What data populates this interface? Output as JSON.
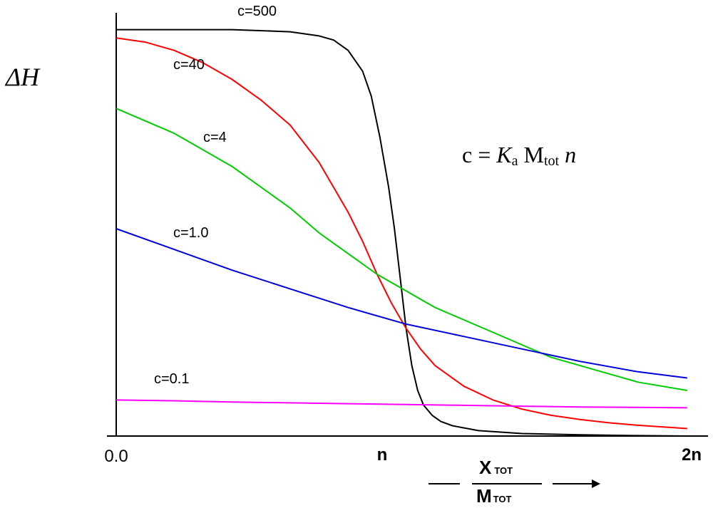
{
  "chart_data": {
    "type": "line",
    "ylabel": "ΔH",
    "xlabel": {
      "numerator_main": "X",
      "numerator_sub": "TOT",
      "denominator_main": "M",
      "denominator_sub": "TOT"
    },
    "x_tick_labels": [
      "0.0",
      "n",
      "2n"
    ],
    "xlim": [
      0,
      2
    ],
    "ylim": [
      0,
      1
    ],
    "annotation": {
      "c": "c",
      "eq": " = ",
      "K": "K",
      "K_sub": "a",
      "M": " M",
      "M_sub": "tot",
      "n": "n"
    },
    "series": [
      {
        "name": "c=500",
        "color": "#000000",
        "x": [
          0,
          0.2,
          0.4,
          0.6,
          0.7,
          0.75,
          0.8,
          0.85,
          0.88,
          0.91,
          0.94,
          0.96,
          0.98,
          1.0,
          1.02,
          1.04,
          1.06,
          1.09,
          1.12,
          1.16,
          1.25,
          1.4,
          1.6,
          1.8,
          1.97
        ],
        "y": [
          0.98,
          0.98,
          0.98,
          0.975,
          0.965,
          0.955,
          0.93,
          0.88,
          0.82,
          0.72,
          0.6,
          0.5,
          0.38,
          0.26,
          0.17,
          0.11,
          0.075,
          0.05,
          0.035,
          0.025,
          0.013,
          0.006,
          0.003,
          0.001,
          0.0
        ]
      },
      {
        "name": "c=40",
        "color": "#ff0000",
        "x": [
          0,
          0.1,
          0.2,
          0.3,
          0.4,
          0.5,
          0.6,
          0.7,
          0.8,
          0.85,
          0.9,
          0.95,
          1.0,
          1.05,
          1.1,
          1.2,
          1.3,
          1.4,
          1.5,
          1.6,
          1.7,
          1.8,
          1.97
        ],
        "y": [
          0.96,
          0.95,
          0.93,
          0.9,
          0.86,
          0.81,
          0.75,
          0.66,
          0.54,
          0.47,
          0.39,
          0.32,
          0.26,
          0.21,
          0.17,
          0.12,
          0.087,
          0.065,
          0.05,
          0.04,
          0.032,
          0.026,
          0.018
        ]
      },
      {
        "name": "c=4",
        "color": "#00cc00",
        "x": [
          0,
          0.1,
          0.2,
          0.3,
          0.4,
          0.5,
          0.6,
          0.7,
          0.8,
          0.9,
          1.0,
          1.1,
          1.2,
          1.3,
          1.4,
          1.5,
          1.6,
          1.7,
          1.8,
          1.97
        ],
        "y": [
          0.79,
          0.76,
          0.73,
          0.69,
          0.65,
          0.6,
          0.55,
          0.49,
          0.44,
          0.39,
          0.35,
          0.31,
          0.28,
          0.25,
          0.22,
          0.19,
          0.17,
          0.15,
          0.13,
          0.11
        ]
      },
      {
        "name": "c=1.0",
        "color": "#0000dd",
        "x": [
          0,
          0.2,
          0.4,
          0.6,
          0.8,
          1.0,
          1.2,
          1.4,
          1.6,
          1.8,
          1.97
        ],
        "y": [
          0.5,
          0.45,
          0.4,
          0.355,
          0.31,
          0.27,
          0.24,
          0.21,
          0.18,
          0.155,
          0.14
        ]
      },
      {
        "name": "c=0.1",
        "color": "#ff00ff",
        "x": [
          0,
          0.2,
          0.4,
          0.6,
          0.8,
          1.0,
          1.2,
          1.4,
          1.6,
          1.8,
          1.97
        ],
        "y": [
          0.087,
          0.085,
          0.082,
          0.08,
          0.078,
          0.076,
          0.074,
          0.072,
          0.07,
          0.069,
          0.068
        ]
      }
    ]
  }
}
